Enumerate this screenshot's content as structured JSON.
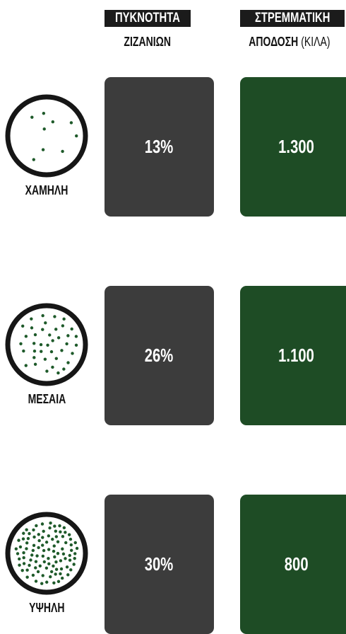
{
  "header": {
    "columns": [
      {
        "title": "ΠΥΚΝΟΤΗΤΑ",
        "subtitle": "ΖΙΖΑΝΙΩΝ"
      },
      {
        "title": "ΣΤΡΕΜΜΑΤΙΚΗ",
        "subtitle": "ΑΠΟΔΟΣΗ",
        "unit": "(ΚΙΛΑ)"
      }
    ]
  },
  "rows": [
    {
      "label": "ΧΑΜΗΛΗ",
      "density": "13%",
      "yield": "1.300"
    },
    {
      "label": "ΜΕΣΑΙΑ",
      "density": "26%",
      "yield": "1.100"
    },
    {
      "label": "ΥΨΗΛΗ",
      "density": "30%",
      "yield": "800"
    }
  ]
}
